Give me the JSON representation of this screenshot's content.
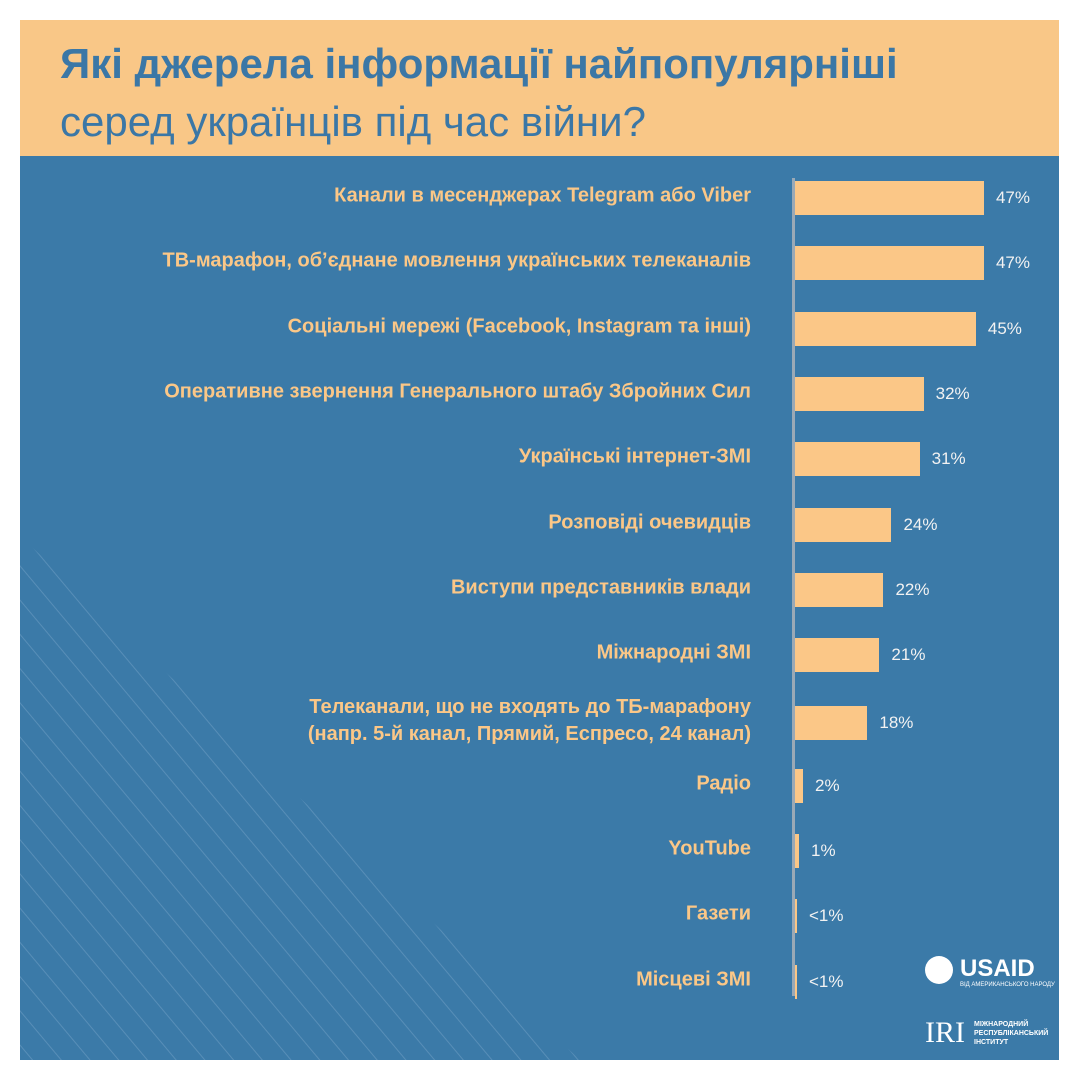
{
  "chart_data": {
    "type": "bar",
    "orientation": "horizontal",
    "title": "Які джерела інформації найпопулярніші",
    "subtitle": "серед українців під час війни?",
    "categories": [
      "Канали в месенджерах Telegram або Viber",
      "ТВ-марафон, об’єднане мовлення українських телеканалів",
      "Соціальні мережі (Facebook, Instagram та інші)",
      "Оперативне звернення Генерального штабу Збройних Сил",
      "Українські інтернет-ЗМІ",
      "Розповіді очевидців",
      "Виступи представників влади",
      "Міжнародні ЗМІ",
      "Телеканали, що не входять до ТБ-марафону\n(напр. 5-й канал, Прямий, Еспресо, 24 канал)",
      "Радіо",
      "YouTube",
      "Газети",
      "Місцеві ЗМІ"
    ],
    "values": [
      47,
      47,
      45,
      32,
      31,
      24,
      22,
      21,
      18,
      2,
      1,
      0.5,
      0.5
    ],
    "value_labels": [
      "47%",
      "47%",
      "45%",
      "32%",
      "31%",
      "24%",
      "22%",
      "21%",
      "18%",
      "2%",
      "1%",
      "<1%",
      "<1%"
    ],
    "color": "#fbc787"
  },
  "logos": {
    "usaid": "USAID",
    "usaid_tagline": "ВІД АМЕРИКАНСЬКОГО НАРОДУ",
    "iri": "IRI",
    "iri_name": "МІЖНАРОДНИЙ\nРЕСПУБЛІКАНСЬКИЙ\nІНСТИТУТ"
  }
}
